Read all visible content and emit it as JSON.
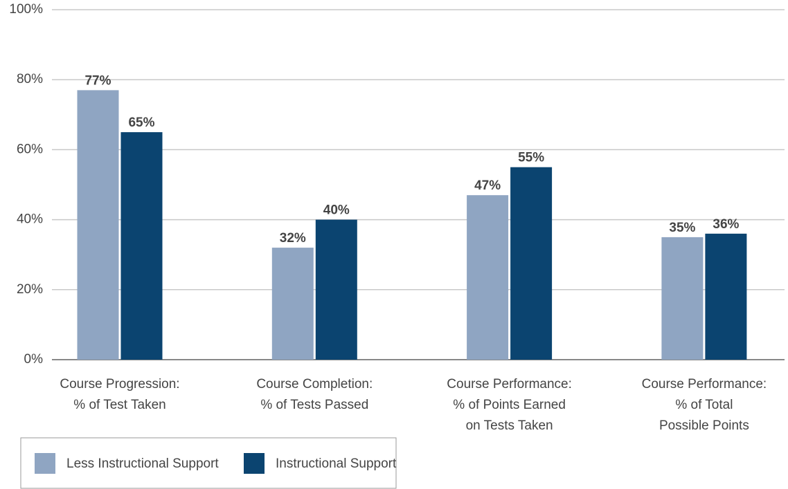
{
  "chart_data": {
    "type": "bar",
    "categories": [
      [
        "Course Progression:",
        "% of Test Taken"
      ],
      [
        "Course Completion:",
        "% of Tests Passed"
      ],
      [
        "Course Performance:",
        "% of Points Earned",
        "on Tests Taken"
      ],
      [
        "Course Performance:",
        "% of Total",
        "Possible Points"
      ]
    ],
    "series": [
      {
        "name": "Less Instructional Support",
        "color": "#8fa5c2",
        "values": [
          77,
          32,
          47,
          35
        ],
        "value_labels": [
          "77%",
          "32%",
          "47%",
          "35%"
        ]
      },
      {
        "name": "Instructional Support",
        "color": "#0b4470",
        "values": [
          65,
          40,
          55,
          36
        ],
        "value_labels": [
          "65%",
          "40%",
          "55%",
          "36%"
        ]
      }
    ],
    "ylim": [
      0,
      100
    ],
    "yticks": [
      {
        "value": 0,
        "label": "0%"
      },
      {
        "value": 20,
        "label": "20%"
      },
      {
        "value": 40,
        "label": "40%"
      },
      {
        "value": 60,
        "label": "60%"
      },
      {
        "value": 80,
        "label": "80%"
      },
      {
        "value": 100,
        "label": "100%"
      }
    ],
    "grid": true,
    "legend": "bottom-left"
  }
}
